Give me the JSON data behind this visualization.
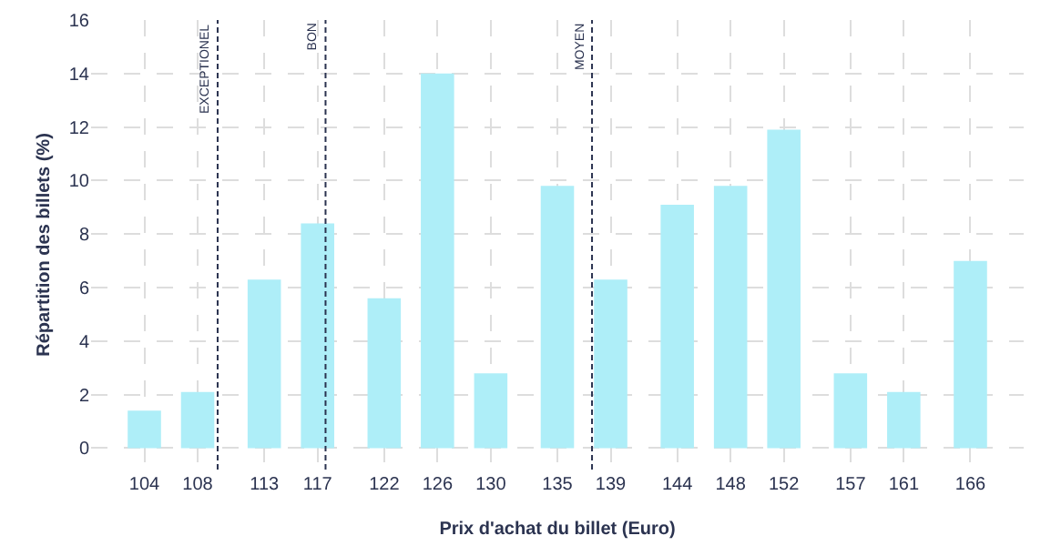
{
  "chart_data": {
    "type": "bar",
    "xlabel": "Prix d'achat du billet (Euro)",
    "ylabel": "Répartition des billets (%)",
    "x": [
      104,
      108,
      113,
      117,
      122,
      126,
      130,
      135,
      139,
      144,
      148,
      152,
      157,
      161,
      166
    ],
    "values": [
      1.4,
      2.1,
      6.3,
      8.4,
      5.6,
      14.0,
      2.8,
      9.8,
      6.3,
      9.1,
      9.8,
      11.9,
      2.8,
      2.1,
      7.0
    ],
    "color": "#aeeef8",
    "xlim": [
      100,
      170
    ],
    "xticks": [
      104,
      108,
      113,
      117,
      122,
      126,
      130,
      135,
      139,
      144,
      148,
      152,
      157,
      161,
      166
    ],
    "ylim": [
      -0.8,
      16
    ],
    "yticks": [
      0,
      2,
      4,
      6,
      8,
      10,
      12,
      14,
      16
    ],
    "ref_lines": [
      {
        "axis": "x",
        "value": 109.5,
        "label": "EXCEPTIONEL",
        "color": "#2b3350",
        "line_style": "dashed"
      },
      {
        "axis": "x",
        "value": 117.6,
        "label": "BON",
        "color": "#2b3350",
        "line_style": "dashed"
      },
      {
        "axis": "x",
        "value": 137.6,
        "label": "MOYEN",
        "color": "#2b3350",
        "line_style": "dashed"
      }
    ],
    "grid": true
  }
}
